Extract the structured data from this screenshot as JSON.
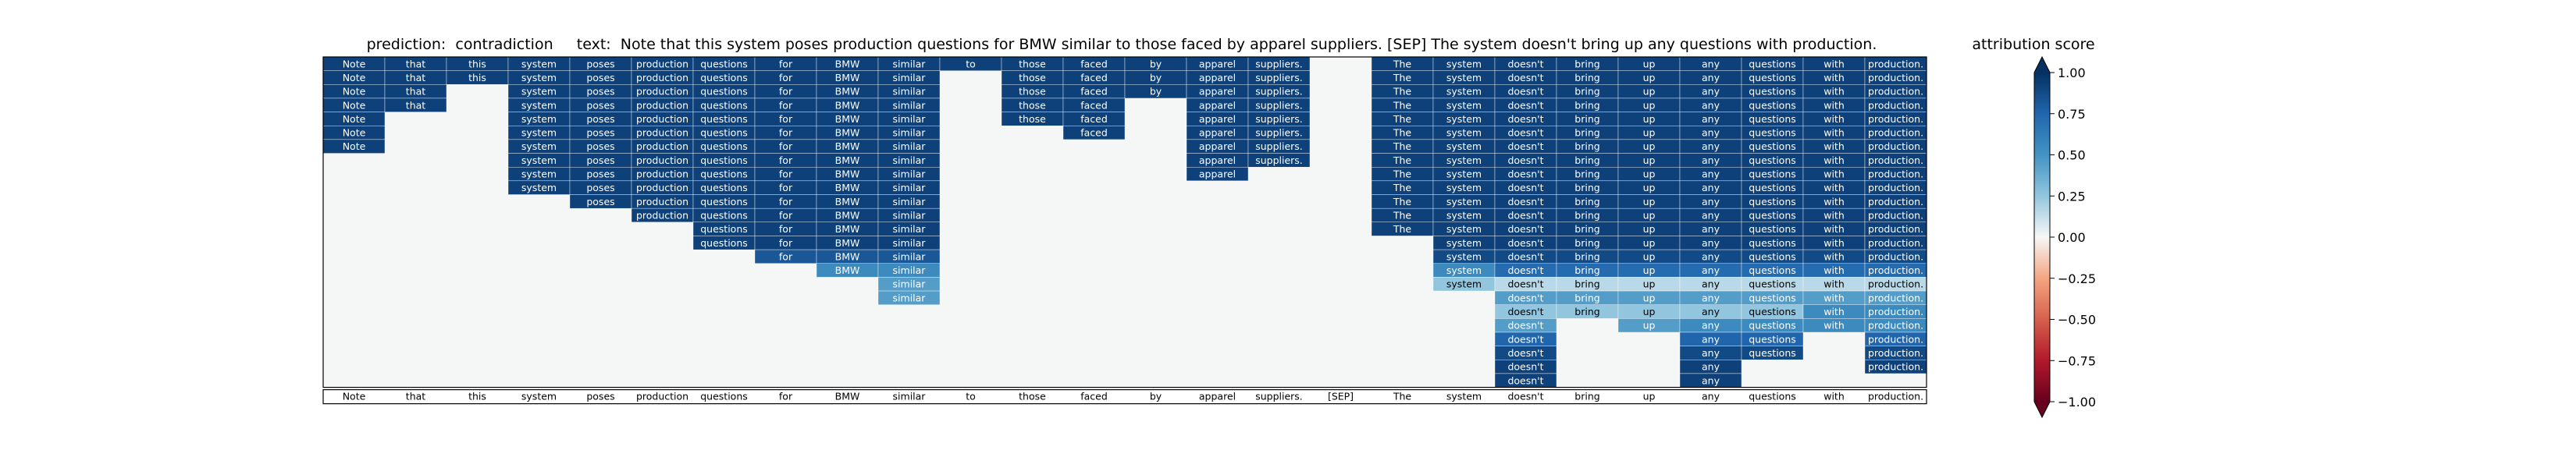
{
  "title": "prediction:  contradiction     text:  Note that this system poses production questions for BMW similar to those faced by apparel suppliers. [SEP] The system doesn't bring up any questions with production.",
  "colorbar": {
    "label": "attribution score",
    "ticks": [
      "1.00",
      "0.75",
      "0.50",
      "0.25",
      "0.00",
      "−0.25",
      "−0.50",
      "−0.75",
      "−1.00"
    ],
    "range": [
      -1,
      1
    ],
    "colormap": "RdBu"
  },
  "chart_data": {
    "type": "heatmap",
    "title": "prediction:  contradiction     text:  Note that this system poses production questions for BMW similar to those faced by apparel suppliers. [SEP] The system doesn't bring up any questions with production.",
    "legend": "attribution score",
    "value_range": [
      -1,
      1
    ],
    "x_tokens": [
      "Note",
      "that",
      "this",
      "system",
      "poses",
      "production",
      "questions",
      "for",
      "BMW",
      "similar",
      "to",
      "those",
      "faced",
      "by",
      "apparel",
      "suppliers.",
      "[SEP]",
      "The",
      "system",
      "doesn't",
      "bring",
      "up",
      "any",
      "questions",
      "with",
      "production."
    ],
    "rows": [
      [
        0.92,
        0.92,
        0.92,
        0.92,
        0.92,
        0.92,
        0.92,
        0.92,
        0.92,
        0.92,
        0.92,
        0.92,
        0.92,
        0.92,
        0.92,
        0.92,
        null,
        0.92,
        0.92,
        0.92,
        0.92,
        0.92,
        0.92,
        0.92,
        0.92,
        0.92
      ],
      [
        0.92,
        0.92,
        0.92,
        0.92,
        0.92,
        0.92,
        0.92,
        0.92,
        0.92,
        0.92,
        null,
        0.92,
        0.92,
        0.92,
        0.92,
        0.92,
        null,
        0.92,
        0.92,
        0.92,
        0.92,
        0.92,
        0.92,
        0.92,
        0.92,
        0.92
      ],
      [
        0.92,
        0.92,
        null,
        0.92,
        0.92,
        0.92,
        0.92,
        0.92,
        0.92,
        0.92,
        null,
        0.92,
        0.92,
        0.92,
        0.92,
        0.92,
        null,
        0.92,
        0.92,
        0.92,
        0.92,
        0.92,
        0.92,
        0.92,
        0.92,
        0.92
      ],
      [
        0.92,
        0.92,
        null,
        0.92,
        0.92,
        0.92,
        0.92,
        0.92,
        0.92,
        0.92,
        null,
        0.92,
        0.92,
        null,
        0.92,
        0.92,
        null,
        0.92,
        0.92,
        0.92,
        0.92,
        0.92,
        0.92,
        0.92,
        0.92,
        0.92
      ],
      [
        0.92,
        null,
        null,
        0.92,
        0.92,
        0.92,
        0.92,
        0.92,
        0.92,
        0.92,
        null,
        0.92,
        0.92,
        null,
        0.92,
        0.92,
        null,
        0.92,
        0.92,
        0.92,
        0.92,
        0.92,
        0.92,
        0.92,
        0.92,
        0.92
      ],
      [
        0.92,
        null,
        null,
        0.92,
        0.92,
        0.92,
        0.92,
        0.92,
        0.92,
        0.92,
        null,
        null,
        0.92,
        null,
        0.92,
        0.92,
        null,
        0.92,
        0.92,
        0.92,
        0.92,
        0.92,
        0.92,
        0.92,
        0.92,
        0.92
      ],
      [
        0.92,
        null,
        null,
        0.92,
        0.92,
        0.92,
        0.92,
        0.92,
        0.92,
        0.92,
        null,
        null,
        null,
        null,
        0.92,
        0.92,
        null,
        0.92,
        0.92,
        0.92,
        0.92,
        0.92,
        0.92,
        0.92,
        0.92,
        0.92
      ],
      [
        null,
        null,
        null,
        0.92,
        0.92,
        0.92,
        0.92,
        0.92,
        0.92,
        0.92,
        null,
        null,
        null,
        null,
        0.92,
        0.92,
        null,
        0.92,
        0.92,
        0.92,
        0.92,
        0.92,
        0.92,
        0.92,
        0.92,
        0.92
      ],
      [
        null,
        null,
        null,
        0.92,
        0.92,
        0.92,
        0.92,
        0.92,
        0.92,
        0.92,
        null,
        null,
        null,
        null,
        0.92,
        null,
        null,
        0.92,
        0.92,
        0.92,
        0.92,
        0.92,
        0.92,
        0.92,
        0.92,
        0.92
      ],
      [
        null,
        null,
        null,
        0.92,
        0.92,
        0.92,
        0.92,
        0.92,
        0.92,
        0.92,
        null,
        null,
        null,
        null,
        null,
        null,
        null,
        0.92,
        0.92,
        0.92,
        0.92,
        0.92,
        0.92,
        0.92,
        0.92,
        0.92
      ],
      [
        null,
        null,
        null,
        null,
        0.92,
        0.92,
        0.92,
        0.92,
        0.92,
        0.92,
        null,
        null,
        null,
        null,
        null,
        null,
        null,
        0.92,
        0.92,
        0.92,
        0.92,
        0.92,
        0.92,
        0.92,
        0.92,
        0.92
      ],
      [
        null,
        null,
        null,
        null,
        null,
        0.92,
        0.92,
        0.92,
        0.92,
        0.92,
        null,
        null,
        null,
        null,
        null,
        null,
        null,
        0.92,
        0.92,
        0.92,
        0.92,
        0.92,
        0.92,
        0.92,
        0.92,
        0.92
      ],
      [
        null,
        null,
        null,
        null,
        null,
        null,
        0.92,
        0.92,
        0.92,
        0.92,
        null,
        null,
        null,
        null,
        null,
        null,
        null,
        0.92,
        0.92,
        0.92,
        0.92,
        0.92,
        0.92,
        0.92,
        0.92,
        0.92
      ],
      [
        null,
        null,
        null,
        null,
        null,
        null,
        0.92,
        0.92,
        0.92,
        0.92,
        null,
        null,
        null,
        null,
        null,
        null,
        null,
        null,
        0.92,
        0.92,
        0.92,
        0.92,
        0.92,
        0.92,
        0.92,
        0.92
      ],
      [
        null,
        null,
        null,
        null,
        null,
        null,
        null,
        0.82,
        0.82,
        0.82,
        null,
        null,
        null,
        null,
        null,
        null,
        null,
        null,
        0.88,
        0.88,
        0.88,
        0.88,
        0.88,
        0.88,
        0.88,
        0.88
      ],
      [
        null,
        null,
        null,
        null,
        null,
        null,
        null,
        null,
        0.55,
        0.55,
        null,
        null,
        null,
        null,
        null,
        null,
        null,
        null,
        0.55,
        0.72,
        0.72,
        0.72,
        0.72,
        0.72,
        0.72,
        0.72
      ],
      [
        null,
        null,
        null,
        null,
        null,
        null,
        null,
        null,
        null,
        0.45,
        null,
        null,
        null,
        null,
        null,
        null,
        null,
        null,
        0.25,
        0.15,
        0.15,
        0.15,
        0.15,
        0.15,
        0.15,
        0.15
      ],
      [
        null,
        null,
        null,
        null,
        null,
        null,
        null,
        null,
        null,
        0.45,
        null,
        null,
        null,
        null,
        null,
        null,
        null,
        null,
        null,
        0.45,
        0.45,
        0.45,
        0.45,
        0.45,
        0.45,
        0.45
      ],
      [
        null,
        null,
        null,
        null,
        null,
        null,
        null,
        null,
        null,
        null,
        null,
        null,
        null,
        null,
        null,
        null,
        null,
        null,
        null,
        0.25,
        0.25,
        0.25,
        0.25,
        0.25,
        0.55,
        0.55
      ],
      [
        null,
        null,
        null,
        null,
        null,
        null,
        null,
        null,
        null,
        null,
        null,
        null,
        null,
        null,
        null,
        null,
        null,
        null,
        null,
        0.45,
        null,
        0.45,
        0.55,
        0.55,
        0.55,
        0.55
      ],
      [
        null,
        null,
        null,
        null,
        null,
        null,
        null,
        null,
        null,
        null,
        null,
        null,
        null,
        null,
        null,
        null,
        null,
        null,
        null,
        0.75,
        null,
        null,
        0.75,
        0.75,
        null,
        0.75
      ],
      [
        null,
        null,
        null,
        null,
        null,
        null,
        null,
        null,
        null,
        null,
        null,
        null,
        null,
        null,
        null,
        null,
        null,
        null,
        null,
        0.88,
        null,
        null,
        0.88,
        0.88,
        null,
        0.88
      ],
      [
        null,
        null,
        null,
        null,
        null,
        null,
        null,
        null,
        null,
        null,
        null,
        null,
        null,
        null,
        null,
        null,
        null,
        null,
        null,
        0.92,
        null,
        null,
        0.92,
        null,
        null,
        0.92
      ],
      [
        null,
        null,
        null,
        null,
        null,
        null,
        null,
        null,
        null,
        null,
        null,
        null,
        null,
        null,
        null,
        null,
        null,
        null,
        null,
        0.92,
        null,
        null,
        0.92,
        null,
        null,
        null
      ]
    ]
  }
}
